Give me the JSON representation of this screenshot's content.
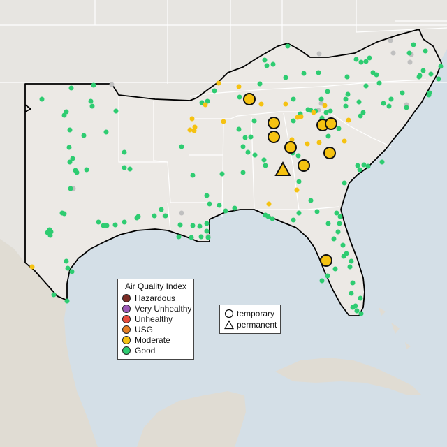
{
  "colors": {
    "water": "#d4dfe7",
    "land_focus": "#ece9e5",
    "land_other": "#e7e5e1",
    "mexico_land": "#e0dcd3",
    "border": "#ffffff",
    "region_outline": "#000000",
    "good": "#2ecc71",
    "moderate": "#f5c211",
    "usg": "#e67e22",
    "unhealthy": "#e74c3c",
    "very_unhealthy": "#9b59b6",
    "hazardous": "#7b2d26",
    "no_data": "#c0c0c0"
  },
  "legend": {
    "title": "Air Quality Index",
    "items": [
      {
        "label": "Hazardous",
        "color": "#7b2d26"
      },
      {
        "label": "Very Unhealthy",
        "color": "#9b59b6"
      },
      {
        "label": "Unhealthy",
        "color": "#e74c3c"
      },
      {
        "label": "USG",
        "color": "#e67e22"
      },
      {
        "label": "Moderate",
        "color": "#f5c211"
      },
      {
        "label": "Good",
        "color": "#2ecc71"
      }
    ]
  },
  "shape_legend": {
    "temporary": "temporary",
    "permanent": "permanent"
  },
  "monitors": {
    "good": [
      [
        60,
        142
      ],
      [
        102,
        126
      ],
      [
        134,
        122
      ],
      [
        95,
        160
      ],
      [
        92,
        165
      ],
      [
        130,
        145
      ],
      [
        132,
        152
      ],
      [
        166,
        159
      ],
      [
        100,
        186
      ],
      [
        152,
        189
      ],
      [
        120,
        194
      ],
      [
        99,
        211
      ],
      [
        104,
        227
      ],
      [
        100,
        232
      ],
      [
        178,
        218
      ],
      [
        178,
        240
      ],
      [
        186,
        242
      ],
      [
        124,
        243
      ],
      [
        108,
        244
      ],
      [
        110,
        247
      ],
      [
        101,
        270
      ],
      [
        89,
        305
      ],
      [
        92,
        306
      ],
      [
        71,
        329
      ],
      [
        68,
        333
      ],
      [
        73,
        332
      ],
      [
        70,
        334
      ],
      [
        72,
        337
      ],
      [
        141,
        318
      ],
      [
        148,
        323
      ],
      [
        153,
        323
      ],
      [
        165,
        322
      ],
      [
        178,
        318
      ],
      [
        196,
        312
      ],
      [
        198,
        310
      ],
      [
        221,
        309
      ],
      [
        237,
        309
      ],
      [
        258,
        322
      ],
      [
        276,
        323
      ],
      [
        286,
        324
      ],
      [
        296,
        331
      ],
      [
        298,
        340
      ],
      [
        288,
        339
      ],
      [
        256,
        339
      ],
      [
        274,
        340
      ],
      [
        296,
        320
      ],
      [
        300,
        292
      ],
      [
        314,
        294
      ],
      [
        323,
        302
      ],
      [
        336,
        298
      ],
      [
        380,
        308
      ],
      [
        384,
        310
      ],
      [
        390,
        313
      ],
      [
        420,
        315
      ],
      [
        428,
        305
      ],
      [
        454,
        303
      ],
      [
        482,
        305
      ],
      [
        487,
        310
      ],
      [
        486,
        320
      ],
      [
        470,
        320
      ],
      [
        484,
        332
      ],
      [
        478,
        342
      ],
      [
        491,
        351
      ],
      [
        496,
        363
      ],
      [
        492,
        367
      ],
      [
        503,
        374
      ],
      [
        501,
        382
      ],
      [
        480,
        385
      ],
      [
        469,
        395
      ],
      [
        461,
        402
      ],
      [
        505,
        405
      ],
      [
        503,
        420
      ],
      [
        516,
        427
      ],
      [
        505,
        440
      ],
      [
        511,
        445
      ],
      [
        517,
        449
      ],
      [
        509,
        438
      ],
      [
        95,
        374
      ],
      [
        97,
        384
      ],
      [
        103,
        389
      ],
      [
        77,
        422
      ],
      [
        96,
        431
      ],
      [
        276,
        251
      ],
      [
        296,
        280
      ],
      [
        318,
        249
      ],
      [
        348,
        247
      ],
      [
        348,
        210
      ],
      [
        351,
        197
      ],
      [
        342,
        185
      ],
      [
        364,
        173
      ],
      [
        359,
        196
      ],
      [
        289,
        147
      ],
      [
        297,
        145
      ],
      [
        307,
        130
      ],
      [
        343,
        139
      ],
      [
        353,
        138
      ],
      [
        372,
        120
      ],
      [
        382,
        94
      ],
      [
        379,
        86
      ],
      [
        412,
        66
      ],
      [
        391,
        92
      ],
      [
        409,
        111
      ],
      [
        435,
        105
      ],
      [
        456,
        104
      ],
      [
        420,
        142
      ],
      [
        430,
        163
      ],
      [
        441,
        157
      ],
      [
        445,
        158
      ],
      [
        419,
        219
      ],
      [
        427,
        223
      ],
      [
        470,
        195
      ],
      [
        485,
        184
      ],
      [
        514,
        146
      ],
      [
        516,
        166
      ],
      [
        520,
        161
      ],
      [
        549,
        148
      ],
      [
        557,
        152
      ],
      [
        497,
        110
      ],
      [
        524,
        123
      ],
      [
        560,
        142
      ],
      [
        576,
        133
      ],
      [
        582,
        154
      ],
      [
        586,
        76
      ],
      [
        592,
        64
      ],
      [
        609,
        73
      ],
      [
        606,
        101
      ],
      [
        601,
        108
      ],
      [
        600,
        110
      ],
      [
        617,
        106
      ],
      [
        628,
        113
      ],
      [
        631,
        95
      ],
      [
        615,
        133
      ],
      [
        614,
        136
      ],
      [
        510,
        85
      ],
      [
        517,
        89
      ],
      [
        524,
        88
      ],
      [
        529,
        83
      ],
      [
        534,
        104
      ],
      [
        539,
        107
      ],
      [
        543,
        119
      ],
      [
        498,
        135
      ],
      [
        495,
        142
      ],
      [
        495,
        152
      ],
      [
        469,
        131
      ],
      [
        460,
        142
      ],
      [
        467,
        161
      ],
      [
        473,
        159
      ],
      [
        452,
        159
      ],
      [
        461,
        169
      ],
      [
        512,
        237
      ],
      [
        515,
        243
      ],
      [
        521,
        236
      ],
      [
        527,
        238
      ],
      [
        547,
        232
      ],
      [
        493,
        262
      ],
      [
        420,
        173
      ],
      [
        392,
        171
      ],
      [
        355,
        218
      ],
      [
        365,
        222
      ],
      [
        378,
        229
      ],
      [
        380,
        237
      ],
      [
        260,
        210
      ],
      [
        231,
        300
      ],
      [
        445,
        287
      ],
      [
        428,
        260
      ]
    ],
    "moderate": [
      [
        313,
        119
      ],
      [
        275,
        170
      ],
      [
        279,
        182
      ],
      [
        272,
        186
      ],
      [
        278,
        187
      ],
      [
        294,
        150
      ],
      [
        320,
        174
      ],
      [
        374,
        149
      ],
      [
        409,
        149
      ],
      [
        426,
        168
      ],
      [
        431,
        167
      ],
      [
        449,
        161
      ],
      [
        465,
        151
      ],
      [
        418,
        200
      ],
      [
        440,
        206
      ],
      [
        457,
        204
      ],
      [
        493,
        202
      ],
      [
        499,
        172
      ],
      [
        342,
        124
      ],
      [
        425,
        272
      ],
      [
        385,
        292
      ],
      [
        46,
        382
      ]
    ],
    "no_data": [
      [
        160,
        121
      ],
      [
        105,
        270
      ],
      [
        260,
        305
      ],
      [
        236,
        309
      ],
      [
        298,
        338
      ],
      [
        460,
        148
      ],
      [
        456,
        158
      ],
      [
        582,
        150
      ],
      [
        587,
        89
      ],
      [
        589,
        78
      ],
      [
        559,
        58
      ],
      [
        563,
        76
      ],
      [
        457,
        77
      ]
    ],
    "temp_moderate": [
      [
        357,
        142
      ],
      [
        392,
        176
      ],
      [
        392,
        196
      ],
      [
        416,
        211
      ],
      [
        435,
        237
      ],
      [
        462,
        179
      ],
      [
        474,
        177
      ],
      [
        472,
        219
      ],
      [
        467,
        373
      ]
    ],
    "perm_moderate": [
      [
        405,
        244
      ]
    ]
  }
}
